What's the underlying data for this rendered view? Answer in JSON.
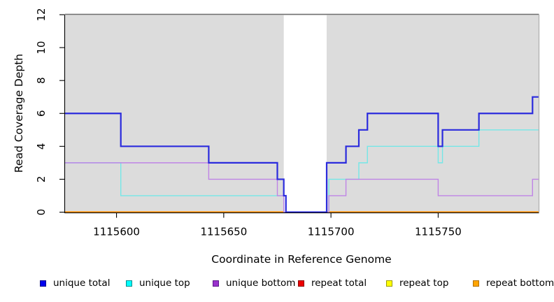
{
  "chart_data": {
    "type": "line",
    "subtype": "step-coverage",
    "title": "",
    "xlabel": "Coordinate in Reference Genome",
    "ylabel": "Read Coverage Depth",
    "xlim": [
      1115576,
      1115797
    ],
    "ylim": [
      0,
      12
    ],
    "x_ticks": [
      1115600,
      1115650,
      1115700,
      1115750
    ],
    "y_ticks": [
      0,
      2,
      4,
      6,
      8,
      10,
      12
    ],
    "grid": "off",
    "plot_background": "#dcdcdc",
    "page_background": "#ffffff",
    "no_data_gap_x": [
      1115678,
      1115698
    ],
    "series": [
      {
        "name": "repeat total",
        "color": "#dd0000",
        "width": 2.2,
        "skip_gap": true,
        "points": [
          [
            1115576,
            0
          ],
          [
            1115797,
            0
          ]
        ]
      },
      {
        "name": "repeat top",
        "color": "#ffff00",
        "width": 2.2,
        "skip_gap": true,
        "points": [
          [
            1115576,
            0
          ],
          [
            1115797,
            0
          ]
        ]
      },
      {
        "name": "repeat bottom",
        "color": "#ff9b1a",
        "width": 2.4,
        "skip_gap": true,
        "points": [
          [
            1115576,
            0
          ],
          [
            1115797,
            0
          ]
        ]
      },
      {
        "name": "unique top",
        "color": "#74e7e7",
        "width": 1.4,
        "points": [
          [
            1115576,
            3
          ],
          [
            1115602,
            1
          ],
          [
            1115678,
            0
          ],
          [
            1115699,
            2
          ],
          [
            1115713,
            3
          ],
          [
            1115717,
            4
          ],
          [
            1115750,
            3
          ],
          [
            1115752,
            4
          ],
          [
            1115769,
            5
          ],
          [
            1115797,
            5
          ]
        ]
      },
      {
        "name": "unique bottom",
        "color": "#bf84e6",
        "width": 1.4,
        "points": [
          [
            1115576,
            3
          ],
          [
            1115643,
            2
          ],
          [
            1115675,
            1
          ],
          [
            1115678,
            0
          ],
          [
            1115699,
            1
          ],
          [
            1115707,
            2
          ],
          [
            1115750,
            1
          ],
          [
            1115794,
            2
          ],
          [
            1115797,
            2
          ]
        ]
      },
      {
        "name": "unique total",
        "color": "#2b2bdd",
        "width": 2.2,
        "points": [
          [
            1115576,
            6
          ],
          [
            1115602,
            4
          ],
          [
            1115643,
            3
          ],
          [
            1115675,
            2
          ],
          [
            1115678,
            1
          ],
          [
            1115679,
            0
          ],
          [
            1115698,
            3
          ],
          [
            1115707,
            4
          ],
          [
            1115713,
            5
          ],
          [
            1115717,
            6
          ],
          [
            1115750,
            4
          ],
          [
            1115752,
            5
          ],
          [
            1115769,
            6
          ],
          [
            1115794,
            7
          ],
          [
            1115797,
            7
          ]
        ]
      }
    ],
    "legend": [
      {
        "label": "unique total",
        "fill": "#0000ee",
        "border": "#00008b"
      },
      {
        "label": "unique top",
        "fill": "#00ffff",
        "border": "#008b8b"
      },
      {
        "label": "unique bottom",
        "fill": "#9932cc",
        "border": "#5d1a8b"
      },
      {
        "label": "repeat total",
        "fill": "#ee0000",
        "border": "#8b0000"
      },
      {
        "label": "repeat top",
        "fill": "#ffff00",
        "border": "#9a9a00"
      },
      {
        "label": "repeat bottom",
        "fill": "#ffa500",
        "border": "#b06f00"
      }
    ],
    "legend_position": "bottom"
  }
}
